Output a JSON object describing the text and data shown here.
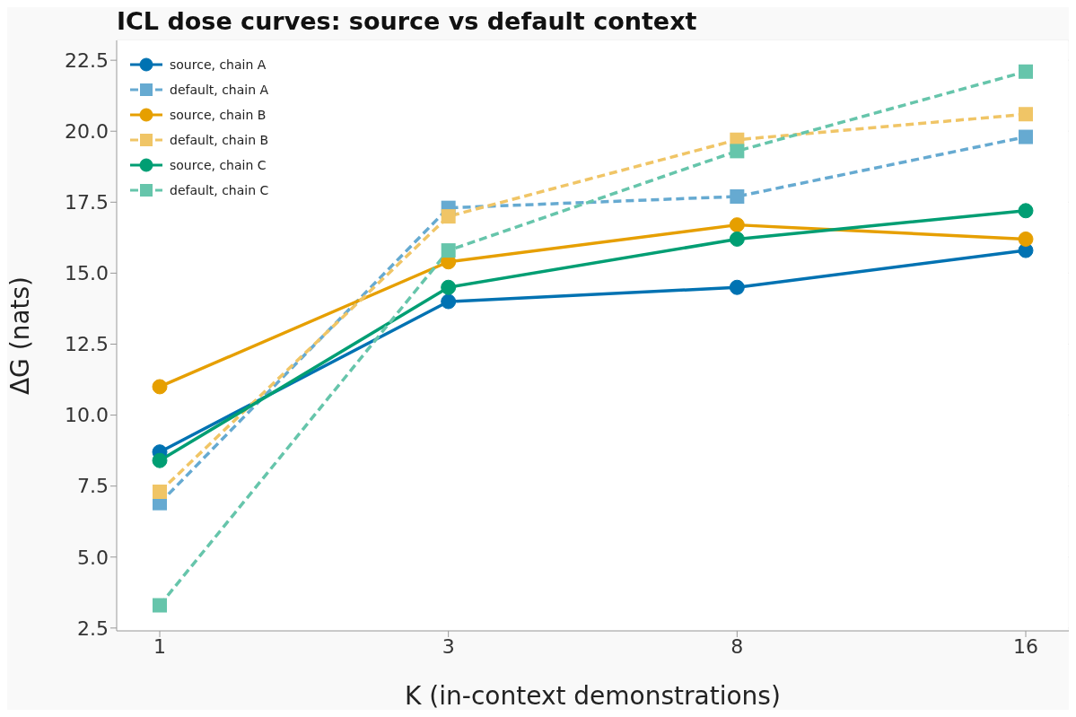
{
  "chart_data": {
    "type": "line",
    "title": "ICL dose curves: source vs default context",
    "xlabel": "K (in-context demonstrations)",
    "ylabel": "ΔG (nats)",
    "categories": [
      "1",
      "3",
      "8",
      "16"
    ],
    "series": [
      {
        "name": "source, chain A",
        "color": "#0072b2",
        "marker": "circle",
        "line_style": "solid",
        "values": [
          8.7,
          14.0,
          14.5,
          15.8
        ]
      },
      {
        "name": "default, chain A",
        "color": "#66aad1",
        "marker": "square",
        "line_style": "dashed",
        "values": [
          6.9,
          17.3,
          17.7,
          19.8
        ]
      },
      {
        "name": "source, chain B",
        "color": "#e69f00",
        "marker": "circle",
        "line_style": "solid",
        "values": [
          11.0,
          15.4,
          16.7,
          16.2
        ]
      },
      {
        "name": "default, chain B",
        "color": "#f0c566",
        "marker": "square",
        "line_style": "dashed",
        "values": [
          7.3,
          17.0,
          19.7,
          20.6
        ]
      },
      {
        "name": "source, chain C",
        "color": "#009e73",
        "marker": "circle",
        "line_style": "solid",
        "values": [
          8.4,
          14.5,
          16.2,
          17.2
        ]
      },
      {
        "name": "default, chain C",
        "color": "#66c5ab",
        "marker": "square",
        "line_style": "dashed",
        "values": [
          3.3,
          15.8,
          19.3,
          22.1
        ]
      }
    ],
    "ylim": [
      2.4,
      23.2
    ],
    "yticks": [
      2.5,
      {
        "value": 5,
        "label": "5.0"
      },
      7.5,
      {
        "value": 10,
        "label": "10.0"
      },
      12.5,
      {
        "value": 15,
        "label": "15.0"
      },
      17.5,
      {
        "value": 20,
        "label": "20.0"
      },
      22.5
    ],
    "grid": "y",
    "legend": "top left"
  }
}
